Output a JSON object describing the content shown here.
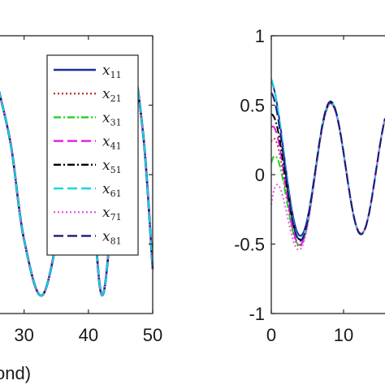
{
  "chart_data": [
    {
      "type": "line",
      "panel": "left",
      "title": "",
      "xlabel": "ond)",
      "ylabel": "",
      "xlim": [
        26,
        50
      ],
      "ylim": [
        -1,
        1
      ],
      "x_ticks": [
        30,
        40,
        50
      ],
      "x_tick_labels": [
        "30",
        "40",
        "50"
      ],
      "grid": false,
      "legend_position": "top-right",
      "series": [
        {
          "name": "x11",
          "color": "#1f2a9e",
          "dash": "solid"
        },
        {
          "name": "x21",
          "color": "#c0392b",
          "dash": "dotted"
        },
        {
          "name": "x31",
          "color": "#1fd31f",
          "dash": "dashdot"
        },
        {
          "name": "x41",
          "color": "#e21be2",
          "dash": "dashed"
        },
        {
          "name": "x51",
          "color": "#000000",
          "dash": "dashdot"
        },
        {
          "name": "x61",
          "color": "#19d6e6",
          "dash": "dashed"
        },
        {
          "name": "x71",
          "color": "#e45be4",
          "dash": "dotted"
        },
        {
          "name": "x81",
          "color": "#1a1a7a",
          "dash": "dashed"
        }
      ],
      "x": [
        26,
        28,
        30,
        33,
        36.5,
        38.5,
        40,
        42,
        44,
        46.5,
        48.5,
        50
      ],
      "values": [
        0.62,
        0.2,
        -0.47,
        -0.86,
        -0.05,
        0.72,
        0.35,
        -0.86,
        -0.15,
        0.78,
        0.3,
        -0.68
      ]
    },
    {
      "type": "line",
      "panel": "right",
      "title": "",
      "xlabel": "",
      "ylabel": "",
      "xlim": [
        0,
        15
      ],
      "ylim": [
        -1,
        1
      ],
      "x_ticks": [
        0,
        10
      ],
      "x_tick_labels": [
        "0",
        "10"
      ],
      "y_ticks": [
        -1,
        -0.5,
        0,
        0.5,
        1
      ],
      "y_tick_labels": [
        "-1",
        "-0.5",
        "0",
        "0.5",
        "1"
      ],
      "grid": false,
      "period": 8.4,
      "amplitude_steady": 0.46,
      "offset_steady": 0.04,
      "series": [
        {
          "name": "x11",
          "color": "#1f2a9e",
          "dash": "solid",
          "y0": 0.6
        },
        {
          "name": "x21",
          "color": "#c0392b",
          "dash": "dotted",
          "y0": 0.1
        },
        {
          "name": "x31",
          "color": "#1fd31f",
          "dash": "dashdot",
          "y0": 0.0
        },
        {
          "name": "x41",
          "color": "#e21be2",
          "dash": "dashed",
          "y0": 0.2
        },
        {
          "name": "x51",
          "color": "#000000",
          "dash": "dashdot",
          "y0": 0.35
        },
        {
          "name": "x61",
          "color": "#19d6e6",
          "dash": "dashed",
          "y0": 0.55
        },
        {
          "name": "x71",
          "color": "#e45be4",
          "dash": "dotted",
          "y0": -0.3
        },
        {
          "name": "x81",
          "color": "#1a1a7a",
          "dash": "dashed",
          "y0": 0.45
        }
      ]
    }
  ],
  "legend": {
    "entries": [
      {
        "base": "x",
        "sub": "11"
      },
      {
        "base": "x",
        "sub": "21"
      },
      {
        "base": "x",
        "sub": "31"
      },
      {
        "base": "x",
        "sub": "41"
      },
      {
        "base": "x",
        "sub": "51"
      },
      {
        "base": "x",
        "sub": "61"
      },
      {
        "base": "x",
        "sub": "71"
      },
      {
        "base": "x",
        "sub": "81"
      }
    ]
  }
}
